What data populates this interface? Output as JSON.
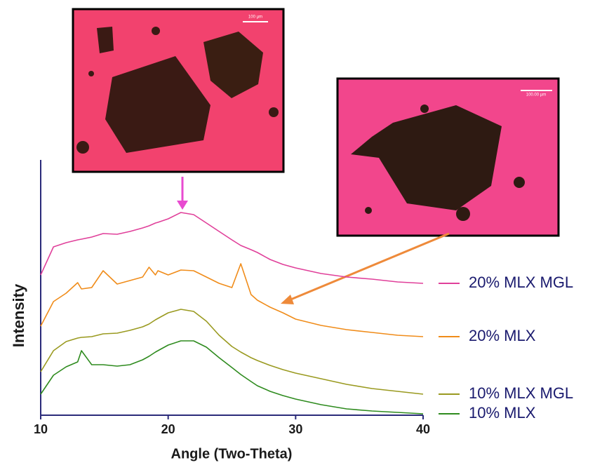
{
  "chart_data": {
    "type": "line",
    "xlabel": "Angle (Two-Theta)",
    "ylabel": "Intensity",
    "annotations": [
      "100 µm",
      "100.00 µm"
    ],
    "x": [
      10,
      11,
      12,
      12.9,
      13.2,
      14,
      14.9,
      16,
      17,
      18,
      18.5,
      19,
      19.2,
      20,
      21,
      22,
      23,
      24,
      25,
      25.7,
      26.5,
      27,
      28,
      29,
      30,
      32,
      34,
      36,
      38,
      40
    ],
    "xlim": [
      10,
      40
    ],
    "xticks": [
      10,
      20,
      30,
      40
    ],
    "ylim": [
      0,
      364
    ],
    "legend": "right",
    "series": [
      {
        "name": "20% MLX MGL",
        "color": "#e0409a",
        "values": [
          200,
          240,
          246,
          250,
          251,
          254,
          259,
          258,
          262,
          267,
          270,
          274,
          275,
          280,
          289,
          286,
          274,
          262,
          250,
          242,
          236,
          232,
          222,
          215,
          210,
          202,
          197,
          194,
          190,
          188
        ]
      },
      {
        "name": "20% MLX",
        "color": "#f08c1a",
        "values": [
          127,
          162,
          174,
          189,
          180,
          182,
          206,
          187,
          192,
          197,
          211,
          200,
          206,
          200,
          207,
          206,
          197,
          188,
          182,
          216,
          172,
          164,
          154,
          146,
          137,
          128,
          122,
          118,
          114,
          112
        ]
      },
      {
        "name": "10% MLX MGL",
        "color": "#9a9a20",
        "values": [
          62,
          92,
          105,
          110,
          111,
          112,
          116,
          117,
          121,
          126,
          130,
          136,
          138,
          146,
          151,
          148,
          134,
          114,
          98,
          90,
          82,
          78,
          71,
          65,
          60,
          52,
          44,
          38,
          34,
          30
        ]
      },
      {
        "name": "10% MLX",
        "color": "#2e8b1e",
        "values": [
          30,
          57,
          69,
          76,
          92,
          72,
          72,
          70,
          72,
          79,
          84,
          90,
          92,
          100,
          106,
          106,
          97,
          82,
          68,
          58,
          48,
          42,
          34,
          28,
          23,
          15,
          9,
          6,
          4,
          2
        ]
      }
    ]
  }
}
